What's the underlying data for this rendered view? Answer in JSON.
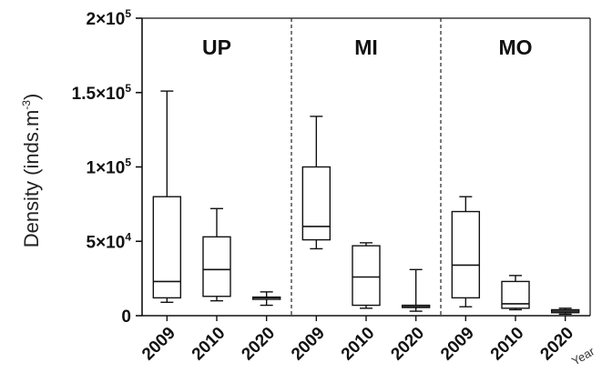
{
  "chart_data": {
    "type": "box",
    "ylabel_main": "Density (inds.m",
    "ylabel_sup": "-3",
    "ylabel_close": ")",
    "xlabel": "Year",
    "ylim": [
      0,
      200000
    ],
    "y_ticks": [
      {
        "value": 0,
        "base": "0",
        "exp": ""
      },
      {
        "value": 50000,
        "base": "5×10",
        "exp": "4"
      },
      {
        "value": 100000,
        "base": "1×10",
        "exp": "5"
      },
      {
        "value": 150000,
        "base": "1.5×10",
        "exp": "5"
      },
      {
        "value": 200000,
        "base": "2×10",
        "exp": "5"
      }
    ],
    "panels": [
      {
        "label": "UP",
        "boxes": [
          {
            "year": "2009",
            "min": 9000,
            "q1": 12000,
            "median": 23000,
            "q3": 80000,
            "max": 151000
          },
          {
            "year": "2010",
            "min": 10000,
            "q1": 13000,
            "median": 31000,
            "q3": 53000,
            "max": 72000
          },
          {
            "year": "2020",
            "min": 7000,
            "q1": 11000,
            "median": 12000,
            "q3": 12500,
            "max": 16000
          }
        ]
      },
      {
        "label": "MI",
        "boxes": [
          {
            "year": "2009",
            "min": 45000,
            "q1": 51000,
            "median": 60000,
            "q3": 100000,
            "max": 134000
          },
          {
            "year": "2010",
            "min": 5000,
            "q1": 7000,
            "median": 26000,
            "q3": 47000,
            "max": 49000
          },
          {
            "year": "2020",
            "min": 3000,
            "q1": 5500,
            "median": 6000,
            "q3": 7000,
            "max": 31000
          }
        ]
      },
      {
        "label": "MO",
        "boxes": [
          {
            "year": "2009",
            "min": 6000,
            "q1": 12000,
            "median": 34000,
            "q3": 70000,
            "max": 80000
          },
          {
            "year": "2010",
            "min": 4000,
            "q1": 5000,
            "median": 8000,
            "q3": 23000,
            "max": 27000
          },
          {
            "year": "2020",
            "min": 1000,
            "q1": 2000,
            "median": 3000,
            "q3": 4000,
            "max": 5000
          }
        ]
      }
    ]
  }
}
